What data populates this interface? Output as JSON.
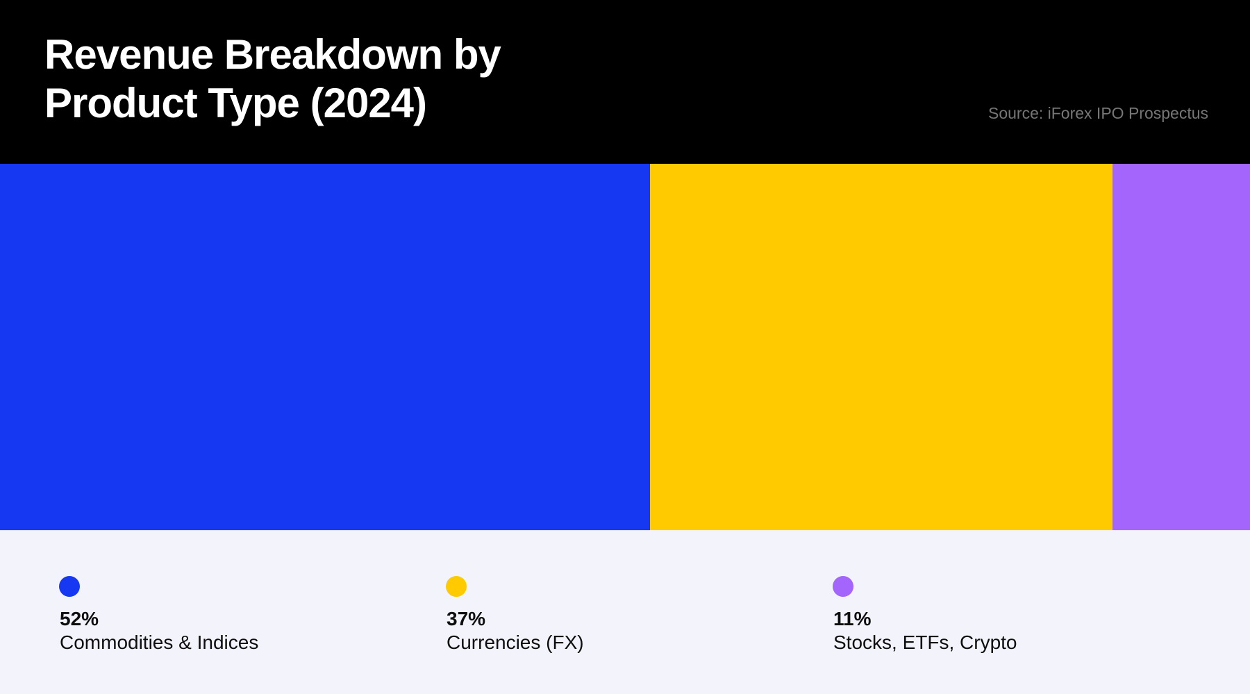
{
  "header": {
    "title": "Revenue Breakdown by\nProduct Type (2024)",
    "source": "Source: iForex IPO Prospectus"
  },
  "colors": {
    "header_bg": "#000000",
    "title_text": "#ffffff",
    "source_text": "#767676",
    "legend_bg": "#f3f4fb",
    "legend_text": "#0e0e0e"
  },
  "chart_data": {
    "type": "bar",
    "variant": "horizontal-100%-stacked",
    "title": "Revenue Breakdown by Product Type (2024)",
    "source": "Source: iForex IPO Prospectus",
    "unit": "%",
    "categories": [
      "Commodities & Indices",
      "Currencies (FX)",
      "Stocks, ETFs, Crypto"
    ],
    "series": [
      {
        "name": "Commodities & Indices",
        "value": 52,
        "pct_label": "52%",
        "color": "#1638F2"
      },
      {
        "name": "Currencies (FX)",
        "value": 37,
        "pct_label": "37%",
        "color": "#FFCA00"
      },
      {
        "name": "Stocks, ETFs, Crypto",
        "value": 11,
        "pct_label": "11%",
        "color": "#A365FB"
      }
    ],
    "xlim": [
      0,
      100
    ],
    "grid": false,
    "legend_position": "bottom"
  }
}
